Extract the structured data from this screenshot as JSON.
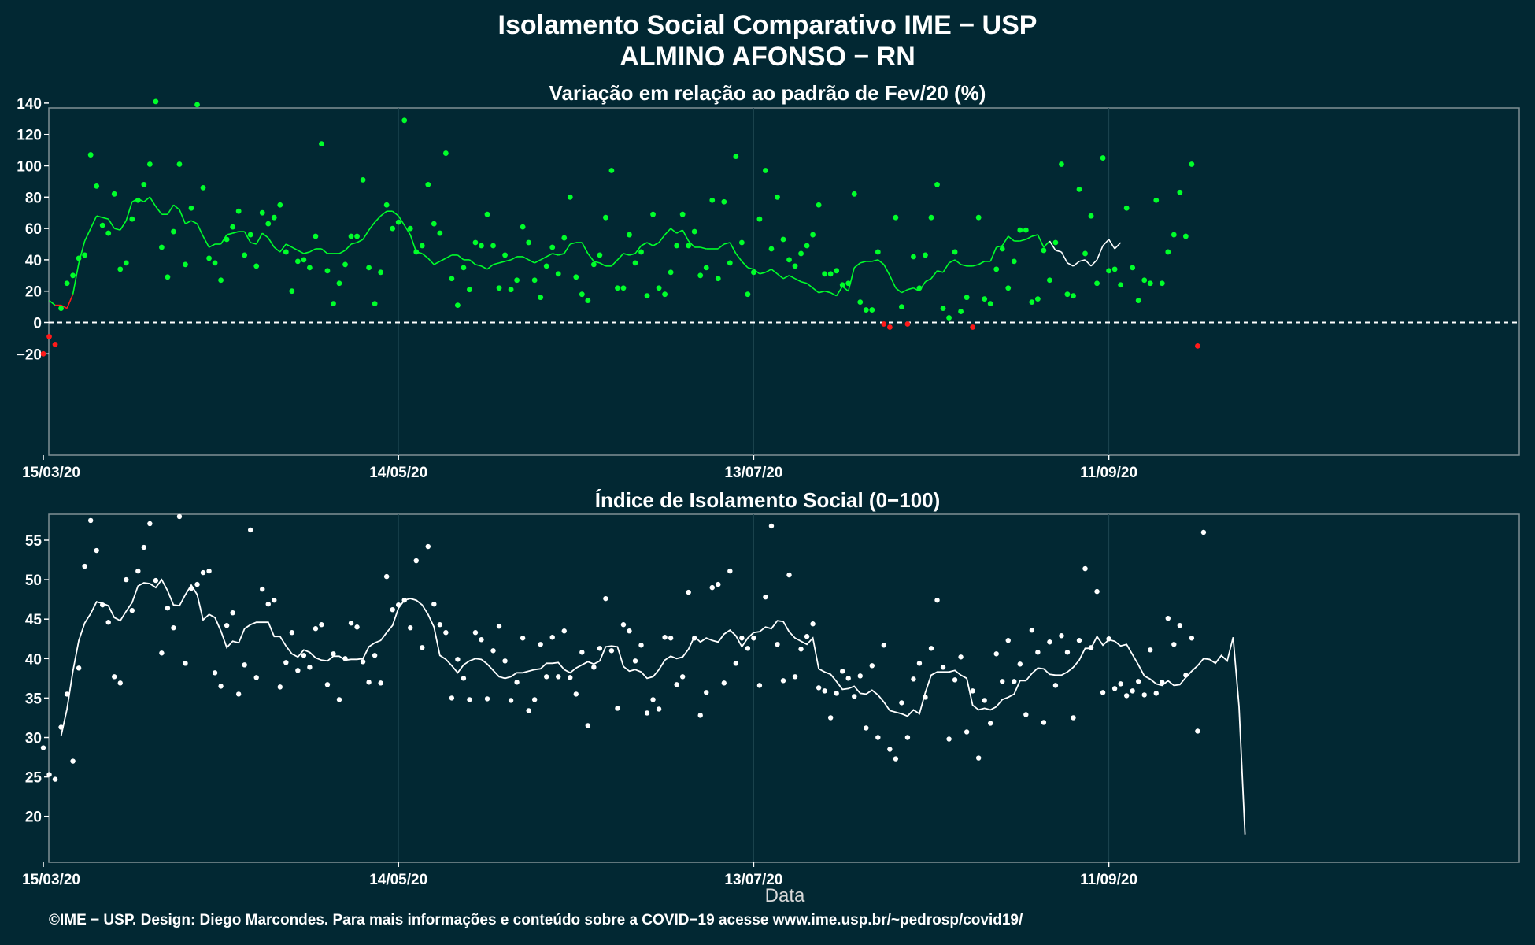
{
  "title": "Isolamento Social Comparativo IME − USP",
  "subtitle": "ALMINO AFONSO − RN",
  "footer": "©IME − USP. Design: Diego Marcondes. Para mais informações e conteúdo sobre a COVID−19 acesse www.ime.usp.br/~pedrosp/covid19/",
  "colors": {
    "background": "#022833",
    "positive": "#00ff2a",
    "negative": "#ff1a1a",
    "index": "#ffffff",
    "grid": "#1d4550"
  },
  "chart_data": [
    {
      "type": "scatter",
      "title": "Variação em relação ao padrão de Fev/20 (%)",
      "x_start": "15/03/20",
      "x_ticks": [
        "15/03/20",
        "14/05/20",
        "13/07/20",
        "11/09/20"
      ],
      "y_ticks": [
        "140",
        "120",
        "100",
        "80",
        "60",
        "40",
        "20",
        "0",
        "−20"
      ],
      "ylim": [
        -28,
        150
      ],
      "reference_line": 0,
      "points": [
        -20,
        -9,
        -14,
        9,
        25,
        30,
        41,
        43,
        107,
        87,
        62,
        57,
        82,
        34,
        38,
        66,
        78,
        88,
        101,
        141,
        48,
        29,
        58,
        101,
        37,
        73,
        139,
        86,
        41,
        38,
        27,
        53,
        61,
        71,
        43,
        56,
        36,
        70,
        63,
        67,
        75,
        45,
        20,
        39,
        40,
        35,
        55,
        114,
        33,
        12,
        25,
        37,
        55,
        55,
        91,
        35,
        12,
        32,
        75,
        60,
        64,
        129,
        60,
        45,
        49,
        88,
        63,
        57,
        108,
        28,
        11,
        35,
        21,
        51,
        49,
        69,
        49,
        22,
        43,
        21,
        27,
        61,
        51,
        27,
        16,
        36,
        48,
        31,
        54,
        80,
        29,
        18,
        14,
        37,
        43,
        67,
        97,
        22,
        22,
        56,
        38,
        45,
        17,
        69,
        22,
        18,
        32,
        49,
        69,
        49,
        58,
        30,
        35,
        78,
        28,
        77,
        38,
        106,
        51,
        18,
        32,
        66,
        97,
        47,
        80,
        53,
        40,
        36,
        44,
        49,
        56,
        75,
        31,
        31,
        33,
        24,
        25,
        82,
        13,
        8,
        8,
        45,
        -1,
        -3,
        67,
        10,
        -1,
        42,
        22,
        43,
        67,
        88,
        9,
        3,
        45,
        7,
        16,
        -3,
        67,
        15,
        12,
        34,
        47,
        22,
        39,
        59,
        59,
        13,
        15,
        46,
        27,
        51,
        101,
        18,
        17,
        85,
        44,
        68,
        25,
        105,
        33,
        34,
        24,
        73,
        35,
        14,
        27,
        25,
        78,
        25,
        45,
        56,
        83,
        55,
        101,
        -15
      ],
      "rolling_mean": [
        14,
        11,
        11,
        9,
        18,
        38,
        52,
        60,
        68,
        67,
        66,
        60,
        59,
        65,
        77,
        79,
        77,
        80,
        74,
        69,
        69,
        75,
        72,
        63,
        65,
        63,
        55,
        48,
        50,
        50,
        56,
        57,
        58,
        58,
        51,
        50,
        57,
        54,
        48,
        45,
        50,
        48,
        46,
        44,
        45,
        47,
        47,
        44,
        44,
        44,
        46,
        50,
        51,
        53,
        59,
        64,
        68,
        71,
        71,
        68,
        62,
        56,
        45,
        44,
        41,
        37,
        39,
        41,
        43,
        43,
        40,
        40,
        37,
        36,
        34,
        37,
        38,
        39,
        40,
        42,
        42,
        40,
        38,
        40,
        42,
        44,
        43,
        44,
        50,
        51,
        51,
        44,
        39,
        38,
        36,
        36,
        40,
        44,
        43,
        44,
        49,
        51,
        49,
        51,
        56,
        60,
        57,
        59,
        52,
        48,
        48,
        47,
        47,
        47,
        50,
        51,
        44,
        39,
        35,
        34,
        31,
        32,
        34,
        31,
        28,
        30,
        28,
        26,
        25,
        22,
        19,
        20,
        19,
        17,
        23,
        20,
        35,
        38,
        39,
        39,
        40,
        37,
        30,
        22,
        19,
        21,
        22,
        20,
        26,
        28,
        33,
        32,
        38,
        40,
        37,
        36,
        36,
        37,
        39,
        39,
        48,
        49,
        55,
        52,
        52,
        53,
        55,
        56,
        48,
        52,
        46,
        45,
        38,
        36,
        39,
        40,
        36,
        40,
        49,
        53,
        47,
        51
      ],
      "rolling_mean_start": 1
    },
    {
      "type": "scatter",
      "title": "Índice de Isolamento Social (0−100)",
      "xlabel": "Data",
      "x_start": "15/03/20",
      "x_ticks": [
        "15/03/20",
        "14/05/20",
        "13/07/20",
        "11/09/20"
      ],
      "y_ticks": [
        "55",
        "50",
        "45",
        "40",
        "35",
        "30",
        "25",
        "20"
      ],
      "ylim": [
        15.6,
        59.8
      ],
      "points": [
        28.7,
        25.3,
        24.7,
        31.3,
        35.5,
        27.0,
        38.8,
        51.7,
        57.5,
        53.7,
        46.8,
        44.6,
        37.7,
        36.9,
        50.0,
        46.1,
        51.1,
        54.1,
        57.1,
        49.9,
        40.7,
        46.4,
        43.9,
        58.0,
        39.4,
        48.9,
        49.4,
        50.9,
        51.1,
        38.2,
        36.5,
        44.2,
        45.8,
        35.5,
        39.2,
        56.3,
        37.6,
        48.8,
        46.9,
        47.4,
        36.4,
        39.5,
        43.3,
        38.5,
        40.4,
        38.9,
        43.8,
        44.3,
        36.7,
        40.6,
        34.8,
        40.0,
        44.5,
        44.0,
        39.6,
        37.0,
        40.4,
        36.9,
        50.4,
        46.2,
        46.8,
        47.4,
        43.9,
        52.4,
        41.4,
        54.2,
        46.9,
        44.3,
        43.3,
        35.0,
        39.9,
        37.5,
        34.8,
        43.3,
        42.4,
        34.9,
        41.0,
        44.1,
        39.7,
        34.7,
        37.0,
        42.6,
        33.4,
        34.8,
        41.8,
        37.7,
        42.7,
        37.7,
        43.5,
        37.6,
        35.5,
        40.8,
        31.5,
        38.9,
        41.3,
        47.6,
        41.0,
        33.7,
        44.3,
        43.5,
        39.7,
        41.7,
        33.1,
        34.8,
        33.6,
        42.7,
        42.6,
        36.7,
        37.7,
        48.4,
        42.6,
        32.8,
        35.7,
        49.0,
        49.4,
        36.9,
        51.1,
        39.4,
        42.6,
        41.3,
        42.6,
        36.6,
        47.8,
        56.8,
        41.8,
        37.2,
        50.6,
        37.7,
        41.2,
        42.8,
        44.4,
        36.3,
        35.9,
        32.5,
        35.6,
        38.4,
        37.5,
        35.2,
        37.8,
        31.2,
        39.1,
        30.0,
        41.7,
        28.5,
        27.3,
        34.4,
        30.0,
        37.4,
        39.4,
        35.1,
        41.3,
        47.4,
        38.9,
        29.8,
        37.3,
        40.2,
        30.7,
        35.9,
        27.4,
        34.7,
        31.8,
        40.6,
        37.1,
        42.3,
        37.1,
        39.3,
        32.9,
        43.6,
        40.8,
        31.9,
        42.1,
        36.6,
        42.9,
        40.8,
        32.5,
        42.3,
        51.4,
        41.4,
        48.5,
        35.7,
        42.5,
        36.2,
        36.8,
        35.3,
        35.9,
        37.1,
        35.4,
        41.1,
        35.6,
        37.0,
        45.1,
        41.8,
        44.2,
        37.9,
        42.6,
        30.8,
        56.0
      ],
      "rolling_mean": [
        30.2,
        33.6,
        38.4,
        42.3,
        44.5,
        45.7,
        47.2,
        47.0,
        46.7,
        45.2,
        44.8,
        46.0,
        47.1,
        49.2,
        49.6,
        49.5,
        49.0,
        50.0,
        48.6,
        46.8,
        46.7,
        48.1,
        49.3,
        48.1,
        44.9,
        45.6,
        45.2,
        43.5,
        41.4,
        42.2,
        42.0,
        43.8,
        44.3,
        44.6,
        44.6,
        44.6,
        42.8,
        42.8,
        41.6,
        40.6,
        40.2,
        41.1,
        40.8,
        40.1,
        39.8,
        39.7,
        40.3,
        40.3,
        39.8,
        39.9,
        39.9,
        40.0,
        41.5,
        42.0,
        42.3,
        43.3,
        44.2,
        46.4,
        47.4,
        47.6,
        47.4,
        46.8,
        45.6,
        44.0,
        40.4,
        39.9,
        39.1,
        38.2,
        39.2,
        39.7,
        40.0,
        39.9,
        39.3,
        38.5,
        37.7,
        37.5,
        37.7,
        38.2,
        38.2,
        38.4,
        38.6,
        38.7,
        39.4,
        39.4,
        39.5,
        38.6,
        38.2,
        38.8,
        39.2,
        39.6,
        39.3,
        39.7,
        41.5,
        41.6,
        41.5,
        39.0,
        38.4,
        38.6,
        38.3,
        37.5,
        37.7,
        38.6,
        39.8,
        40.3,
        40.0,
        40.2,
        41.2,
        42.8,
        42.1,
        42.6,
        42.3,
        42.1,
        43.1,
        43.6,
        42.9,
        41.5,
        42.6,
        43.3,
        43.4,
        44.0,
        43.8,
        44.8,
        44.7,
        43.4,
        42.6,
        42.2,
        41.8,
        42.6,
        38.7,
        38.3,
        38.0,
        37.1,
        36.1,
        36.2,
        36.5,
        35.6,
        35.5,
        36.0,
        35.4,
        34.5,
        33.4,
        33.2,
        33.0,
        32.7,
        33.5,
        33.0,
        35.7,
        37.9,
        38.3,
        38.3,
        38.3,
        38.5,
        37.9,
        37.5,
        34.1,
        33.5,
        33.7,
        33.5,
        33.9,
        34.8,
        35.1,
        35.5,
        37.2,
        37.2,
        38.1,
        38.8,
        38.7,
        38.0,
        37.9,
        37.9,
        38.3,
        38.9,
        39.8,
        41.3,
        41.3,
        42.8,
        41.7,
        42.4,
        42.2,
        41.6,
        41.8,
        40.5,
        39.2,
        37.8,
        37.4,
        36.8,
        36.6,
        37.2,
        36.6,
        36.7,
        37.6,
        38.4,
        39.1,
        40.0,
        39.9,
        39.4,
        40.4,
        39.7,
        42.7,
        33.9,
        17.7
      ],
      "rolling_mean_start": 3
    }
  ]
}
